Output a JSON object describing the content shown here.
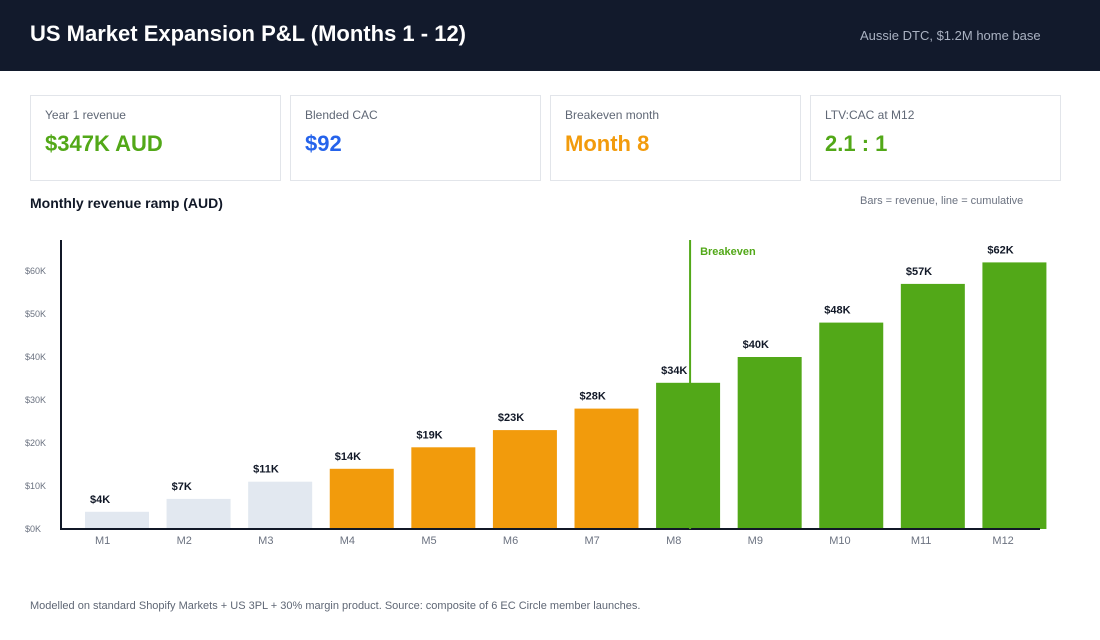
{
  "header": {
    "title": "US Market Expansion P&L (Months 1 - 12)",
    "subtitle": "Aussie DTC, $1.2M home base"
  },
  "kpis": [
    {
      "label": "Year 1 revenue",
      "value": "$347K AUD",
      "color": "#52a818"
    },
    {
      "label": "Blended CAC",
      "value": "$92",
      "color": "#2563eb"
    },
    {
      "label": "Breakeven month",
      "value": "Month 8",
      "color": "#f29b0c"
    },
    {
      "label": "LTV:CAC at M12",
      "value": "2.1 : 1",
      "color": "#52a818"
    }
  ],
  "section": {
    "title": "Monthly revenue ramp (AUD)",
    "note": "Bars = revenue, line = cumulative"
  },
  "chart_data": {
    "type": "bar",
    "title": "Monthly revenue ramp (AUD)",
    "categories": [
      "M1",
      "M2",
      "M3",
      "M4",
      "M5",
      "M6",
      "M7",
      "M8",
      "M9",
      "M10",
      "M11",
      "M12"
    ],
    "values": [
      4,
      7,
      11,
      14,
      19,
      23,
      28,
      34,
      40,
      48,
      57,
      62
    ],
    "data_labels": [
      "$4K",
      "$7K",
      "$11K",
      "$14K",
      "$19K",
      "$23K",
      "$28K",
      "$34K",
      "$40K",
      "$48K",
      "$57K",
      "$62K"
    ],
    "value_unit": "K AUD",
    "phase_colors": [
      "#e2e8f0",
      "#e2e8f0",
      "#e2e8f0",
      "#f29b0c",
      "#f29b0c",
      "#f29b0c",
      "#f29b0c",
      "#52a818",
      "#52a818",
      "#52a818",
      "#52a818",
      "#52a818"
    ],
    "ylim": [
      0,
      67
    ],
    "yticks": [
      0,
      10,
      20,
      30,
      40,
      50,
      60
    ],
    "ytick_labels": [
      "$0K",
      "$10K",
      "$20K",
      "$30K",
      "$40K",
      "$50K",
      "$60K"
    ],
    "grid": false,
    "annotation": {
      "label": "Breakeven",
      "category": "M8",
      "color": "#52a818"
    }
  },
  "footnote": "Modelled on standard Shopify Markets + US 3PL + 30% margin product. Source: composite of 6 EC Circle member launches."
}
